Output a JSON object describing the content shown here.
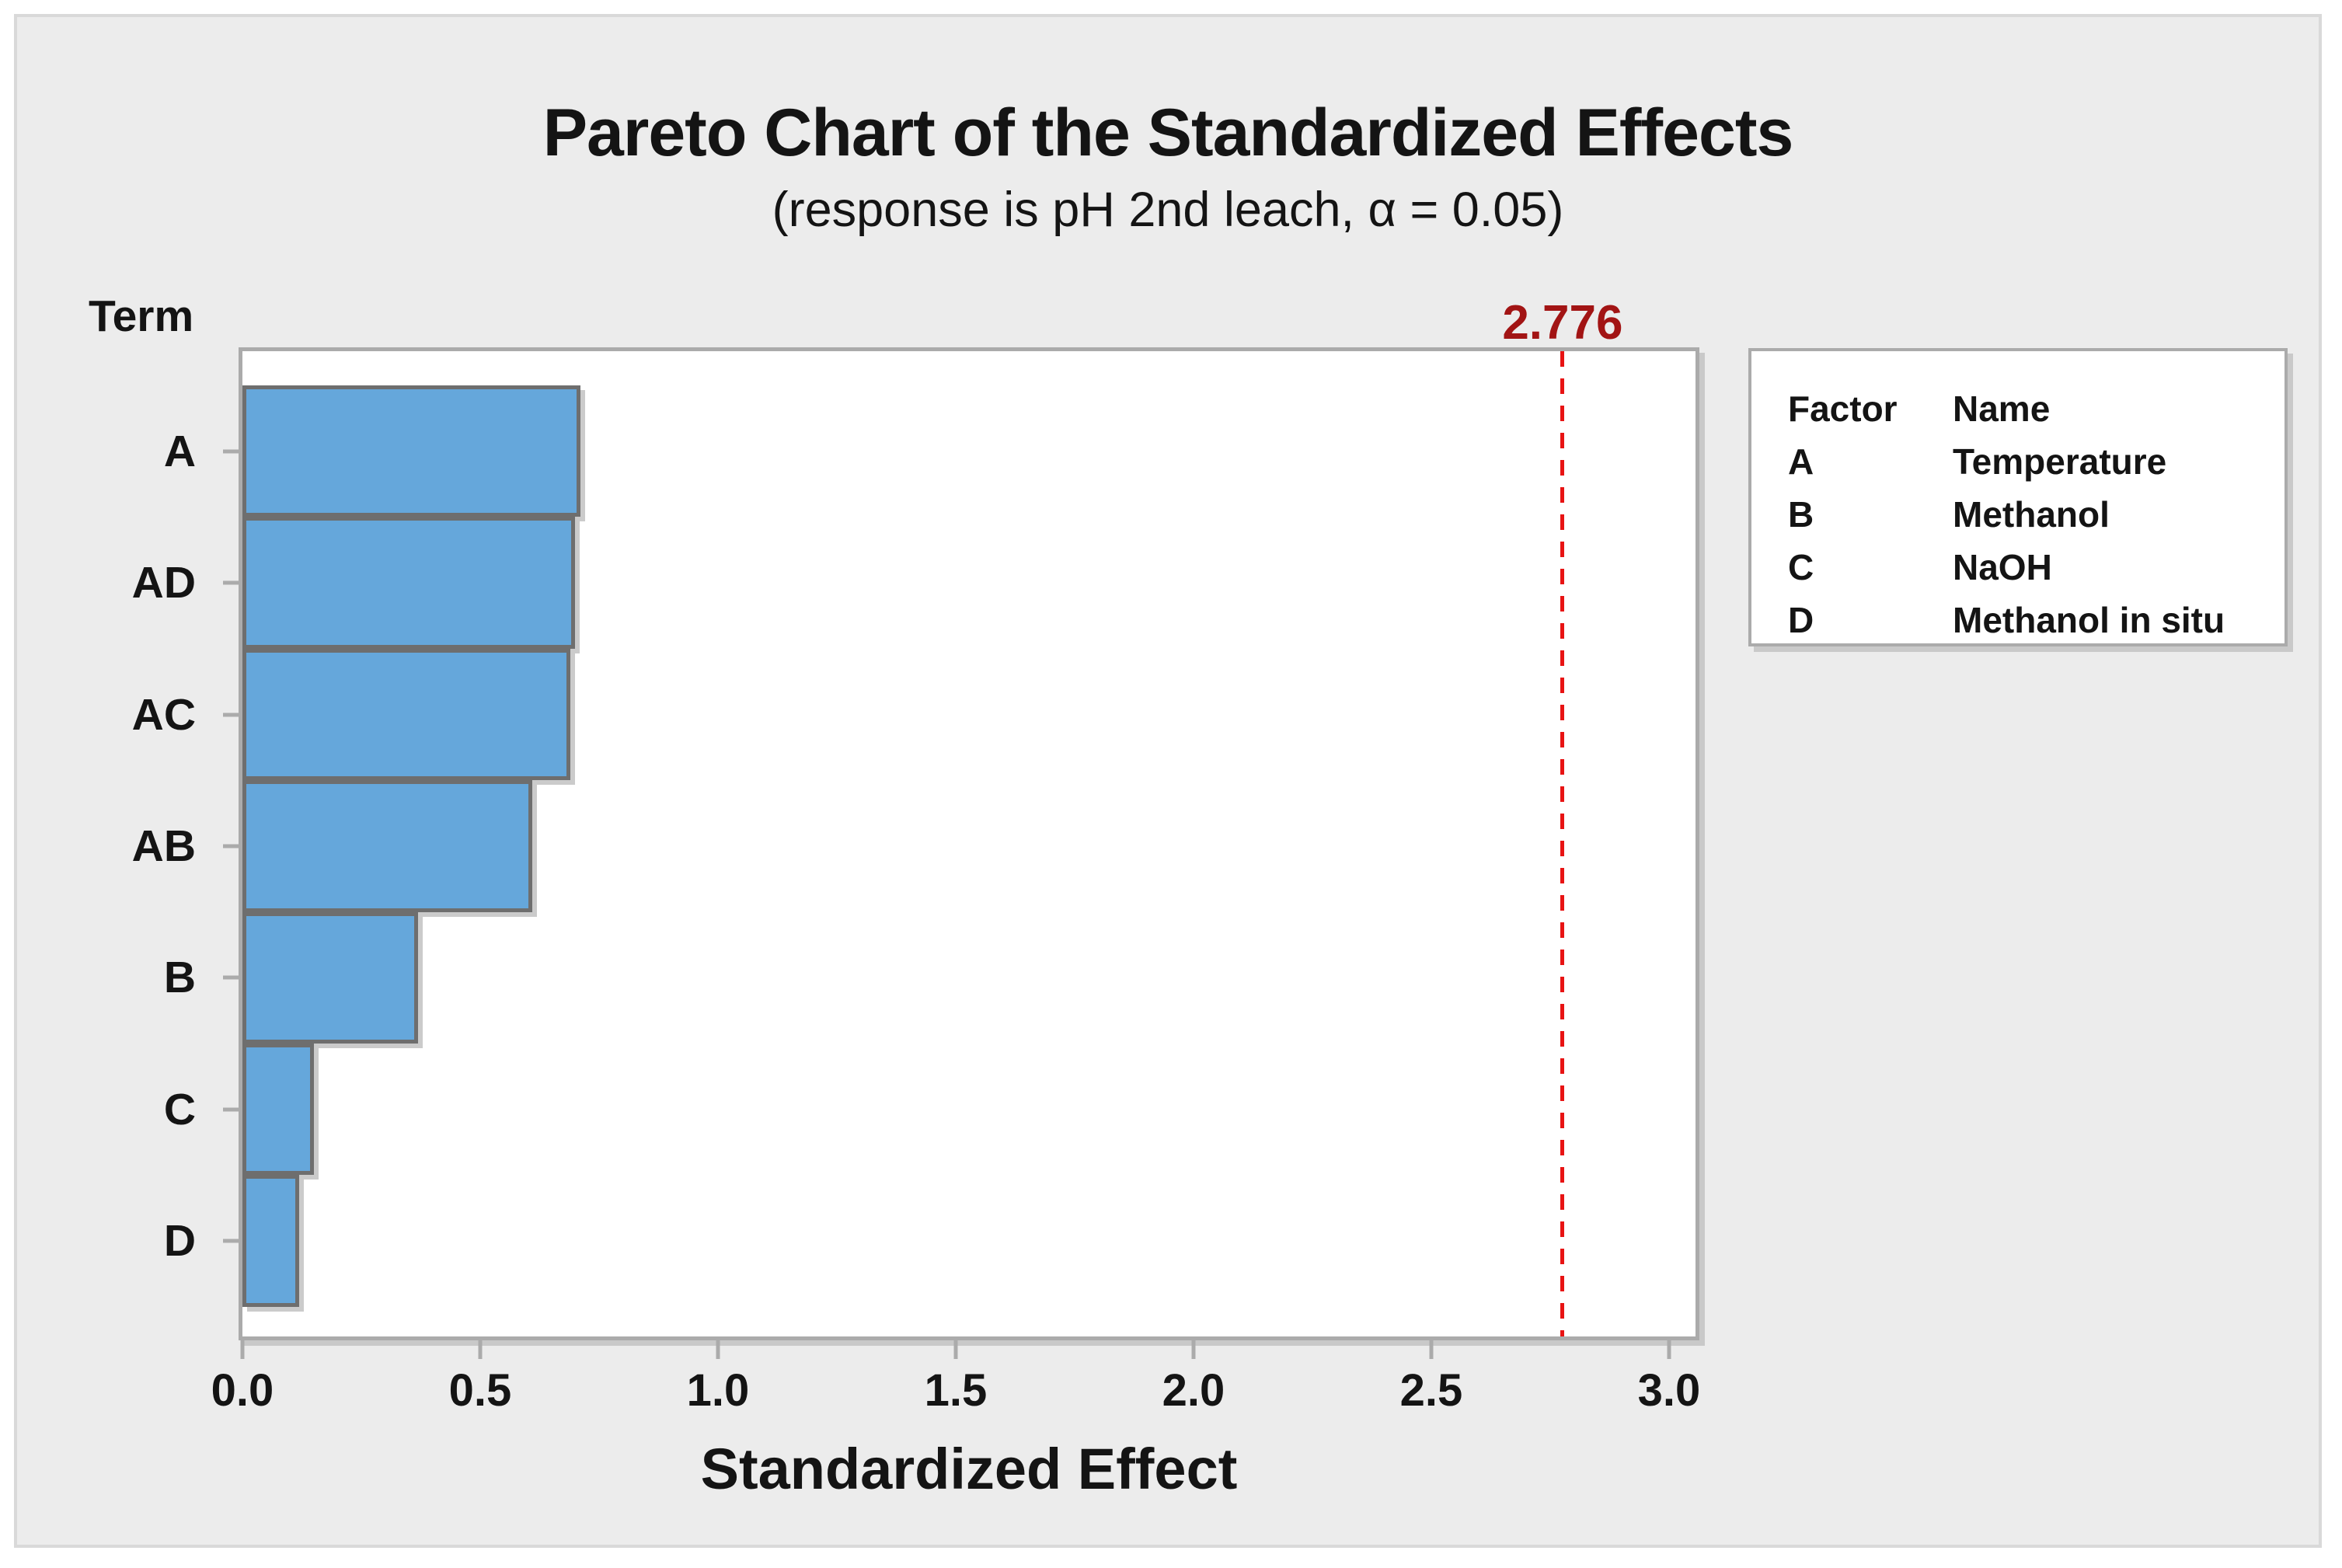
{
  "title": "Pareto Chart of the Standardized Effects",
  "subtitle": "(response is pH 2nd leach, α = 0.05)",
  "chart_data": {
    "type": "bar",
    "orientation": "horizontal",
    "title": "Pareto Chart of the Standardized Effects",
    "subtitle": "(response is pH 2nd leach, α = 0.05)",
    "ylabel": "Term",
    "xlabel": "Standardized Effect",
    "categories": [
      "A",
      "AD",
      "AC",
      "AB",
      "B",
      "C",
      "D"
    ],
    "values": [
      0.71,
      0.7,
      0.69,
      0.61,
      0.37,
      0.15,
      0.12
    ],
    "xlim": [
      0,
      3.06
    ],
    "xticks": [
      {
        "value": 0.0,
        "label": "0.0"
      },
      {
        "value": 0.5,
        "label": "0.5"
      },
      {
        "value": 1.0,
        "label": "1.0"
      },
      {
        "value": 1.5,
        "label": "1.5"
      },
      {
        "value": 2.0,
        "label": "2.0"
      },
      {
        "value": 2.5,
        "label": "2.5"
      },
      {
        "value": 3.0,
        "label": "3.0"
      }
    ],
    "reference_line": {
      "value": 2.776,
      "label": "2.776"
    },
    "grid": false,
    "legend_position": "top-right"
  },
  "legend": {
    "headers": [
      "Factor",
      "Name"
    ],
    "rows": [
      {
        "factor": "A",
        "name": "Temperature"
      },
      {
        "factor": "B",
        "name": "Methanol"
      },
      {
        "factor": "C",
        "name": "NaOH"
      },
      {
        "factor": "D",
        "name": "Methanol in situ"
      }
    ]
  },
  "colors": {
    "background": "#ECECEC",
    "panel": "#FFFFFF",
    "bar_fill": "#65A7DB",
    "bar_border": "#6E6E6E",
    "plot_border": "#ABABAB",
    "reference_line": "#E81313",
    "reference_label": "#A21414",
    "text": "#141414"
  }
}
